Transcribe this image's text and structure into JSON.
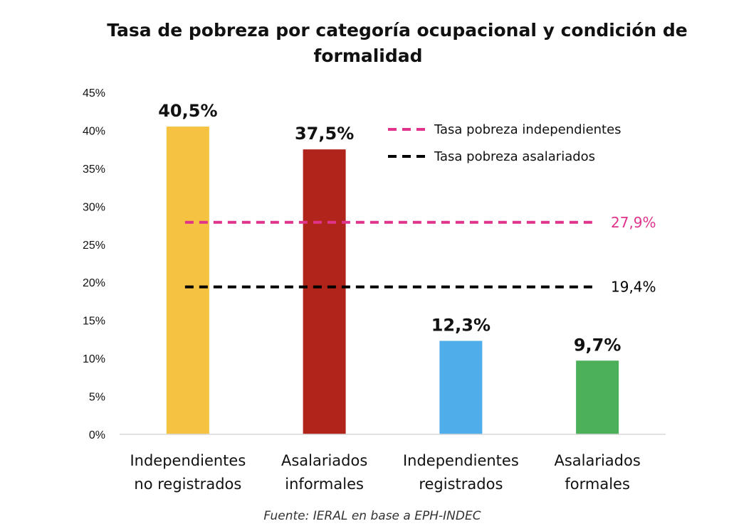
{
  "chart_data": {
    "type": "bar",
    "title": "Tasa de pobreza por categoría ocupacional y condición de formalidad",
    "title_lines": [
      "Tasa de pobreza por categoría ocupacional y condición de",
      "formalidad"
    ],
    "categories": [
      [
        "Independientes",
        "no registrados"
      ],
      [
        "Asalariados",
        "informales"
      ],
      [
        "Independientes",
        "registrados"
      ],
      [
        "Asalariados",
        "formales"
      ]
    ],
    "values": [
      40.5,
      37.5,
      12.3,
      9.7
    ],
    "value_labels": [
      "40,5%",
      "37,5%",
      "12,3%",
      "9,7%"
    ],
    "bar_colors": [
      "#F5C242",
      "#B0241B",
      "#4FAEEA",
      "#4CAF5A"
    ],
    "ylim": [
      0,
      45
    ],
    "yticks": [
      0,
      5,
      10,
      15,
      20,
      25,
      30,
      35,
      40,
      45
    ],
    "ytick_labels": [
      "0%",
      "5%",
      "10%",
      "15%",
      "20%",
      "25%",
      "30%",
      "35%",
      "40%",
      "45%"
    ],
    "xlabel": "",
    "ylabel": "",
    "grid": false,
    "reference_lines": [
      {
        "name": "Tasa pobreza independientes",
        "value": 27.9,
        "label": "27,9%",
        "color": "#E0338C"
      },
      {
        "name": "Tasa pobreza asalariados",
        "value": 19.4,
        "label": "19,4%",
        "color": "#000000"
      }
    ],
    "legend_position": "top-right",
    "source": "Fuente: IERAL en base a EPH-INDEC"
  }
}
